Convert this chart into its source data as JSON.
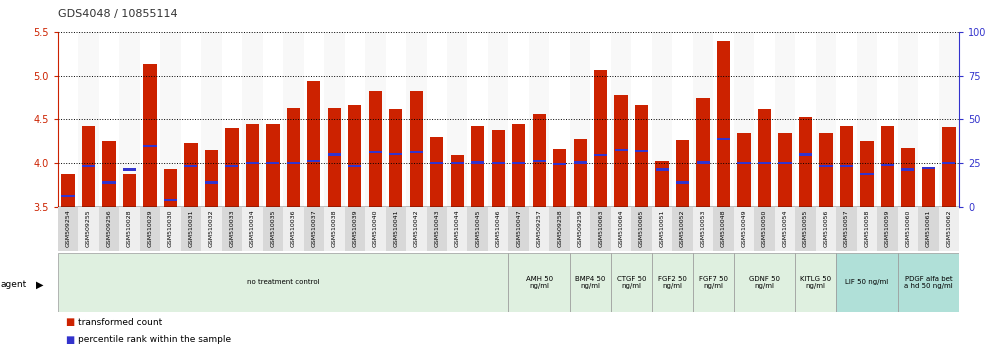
{
  "title": "GDS4048 / 10855114",
  "samples": [
    "GSM509254",
    "GSM509255",
    "GSM509256",
    "GSM510028",
    "GSM510029",
    "GSM510030",
    "GSM510031",
    "GSM510032",
    "GSM510033",
    "GSM510034",
    "GSM510035",
    "GSM510036",
    "GSM510037",
    "GSM510038",
    "GSM510039",
    "GSM510040",
    "GSM510041",
    "GSM510042",
    "GSM510043",
    "GSM510044",
    "GSM510045",
    "GSM510046",
    "GSM510047",
    "GSM509257",
    "GSM509258",
    "GSM509259",
    "GSM510063",
    "GSM510064",
    "GSM510065",
    "GSM510051",
    "GSM510052",
    "GSM510053",
    "GSM510048",
    "GSM510049",
    "GSM510050",
    "GSM510054",
    "GSM510055",
    "GSM510056",
    "GSM510057",
    "GSM510058",
    "GSM510059",
    "GSM510060",
    "GSM510061",
    "GSM510062"
  ],
  "bar_values": [
    3.88,
    4.42,
    4.25,
    3.88,
    5.13,
    3.93,
    4.23,
    4.15,
    4.4,
    4.45,
    4.45,
    4.63,
    4.94,
    4.63,
    4.67,
    4.83,
    4.62,
    4.83,
    4.3,
    4.1,
    4.43,
    4.38,
    4.45,
    4.56,
    4.16,
    4.28,
    5.06,
    4.78,
    4.67,
    4.03,
    4.27,
    4.75,
    5.4,
    4.34,
    4.62,
    4.35,
    4.53,
    4.35,
    4.42,
    4.25,
    4.43,
    4.18,
    3.96,
    4.41
  ],
  "percentile_values": [
    3.63,
    3.97,
    3.78,
    3.93,
    4.2,
    3.58,
    3.97,
    3.78,
    3.97,
    4.0,
    4.0,
    4.0,
    4.03,
    4.1,
    3.97,
    4.13,
    4.11,
    4.13,
    4.0,
    4.0,
    4.01,
    4.0,
    4.0,
    4.03,
    3.99,
    4.01,
    4.09,
    4.15,
    4.14,
    3.93,
    3.78,
    4.01,
    4.28,
    4.0,
    4.0,
    4.0,
    4.1,
    3.97,
    3.97,
    3.88,
    3.98,
    3.93,
    3.95,
    4.0
  ],
  "agent_groups": [
    {
      "label": "no treatment control",
      "start": 0,
      "end": 22,
      "color": "#dff0e0",
      "border": "#aaaaaa"
    },
    {
      "label": "AMH 50\nng/ml",
      "start": 22,
      "end": 25,
      "color": "#dff0e0",
      "border": "#aaaaaa"
    },
    {
      "label": "BMP4 50\nng/ml",
      "start": 25,
      "end": 27,
      "color": "#dff0e0",
      "border": "#aaaaaa"
    },
    {
      "label": "CTGF 50\nng/ml",
      "start": 27,
      "end": 29,
      "color": "#dff0e0",
      "border": "#aaaaaa"
    },
    {
      "label": "FGF2 50\nng/ml",
      "start": 29,
      "end": 31,
      "color": "#dff0e0",
      "border": "#aaaaaa"
    },
    {
      "label": "FGF7 50\nng/ml",
      "start": 31,
      "end": 33,
      "color": "#dff0e0",
      "border": "#aaaaaa"
    },
    {
      "label": "GDNF 50\nng/ml",
      "start": 33,
      "end": 36,
      "color": "#dff0e0",
      "border": "#aaaaaa"
    },
    {
      "label": "KITLG 50\nng/ml",
      "start": 36,
      "end": 38,
      "color": "#dff0e0",
      "border": "#aaaaaa"
    },
    {
      "label": "LIF 50 ng/ml",
      "start": 38,
      "end": 41,
      "color": "#b0e0d8",
      "border": "#aaaaaa"
    },
    {
      "label": "PDGF alfa bet\na hd 50 ng/ml",
      "start": 41,
      "end": 44,
      "color": "#b0e0d8",
      "border": "#aaaaaa"
    }
  ],
  "ylim": [
    3.5,
    5.5
  ],
  "yticks": [
    3.5,
    4.0,
    4.5,
    5.0,
    5.5
  ],
  "y2ticks": [
    0,
    25,
    50,
    75,
    100
  ],
  "bar_color": "#cc2200",
  "marker_color": "#3333cc",
  "bar_bottom": 3.5,
  "figsize": [
    9.96,
    3.54
  ]
}
